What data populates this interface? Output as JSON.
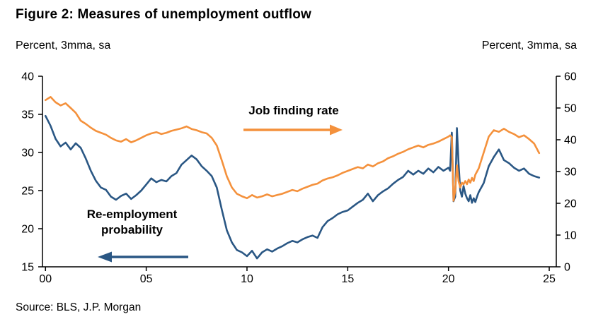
{
  "chart_data": {
    "type": "line",
    "title": "Figure 2: Measures of unemployment outflow",
    "source": "Source: BLS, J.P. Morgan",
    "grid": false,
    "left_axis": {
      "units_label": "Percent, 3mma, sa",
      "min": 15,
      "max": 40,
      "ticks": [
        15,
        20,
        25,
        30,
        35,
        40
      ]
    },
    "right_axis": {
      "units_label": "Percent, 3mma, sa",
      "min": 0,
      "max": 60,
      "ticks": [
        0,
        10,
        20,
        30,
        40,
        50,
        60
      ]
    },
    "x_axis": {
      "tick_labels": [
        "00",
        "05",
        "10",
        "15",
        "20",
        "25"
      ],
      "tick_values": [
        2000,
        2005,
        2010,
        2015,
        2020,
        2025
      ]
    },
    "annotations": [
      {
        "label": "Job finding rate",
        "series": "Job finding rate",
        "arrow": "right",
        "color": "#F4913C"
      },
      {
        "label_line1": "Re-employment",
        "label_line2": "probability",
        "series": "Re-employment probability",
        "arrow": "left",
        "color": "#2A5784"
      }
    ],
    "x": [
      2000.0,
      2000.25,
      2000.5,
      2000.75,
      2001.0,
      2001.25,
      2001.5,
      2001.75,
      2002.0,
      2002.25,
      2002.5,
      2002.75,
      2003.0,
      2003.25,
      2003.5,
      2003.75,
      2004.0,
      2004.25,
      2004.5,
      2004.75,
      2005.0,
      2005.25,
      2005.5,
      2005.75,
      2006.0,
      2006.25,
      2006.5,
      2006.75,
      2007.0,
      2007.25,
      2007.5,
      2007.75,
      2008.0,
      2008.25,
      2008.5,
      2008.75,
      2009.0,
      2009.25,
      2009.5,
      2009.75,
      2010.0,
      2010.25,
      2010.5,
      2010.75,
      2011.0,
      2011.25,
      2011.5,
      2011.75,
      2012.0,
      2012.25,
      2012.5,
      2012.75,
      2013.0,
      2013.25,
      2013.5,
      2013.75,
      2014.0,
      2014.25,
      2014.5,
      2014.75,
      2015.0,
      2015.25,
      2015.5,
      2015.75,
      2016.0,
      2016.25,
      2016.5,
      2016.75,
      2017.0,
      2017.25,
      2017.5,
      2017.75,
      2018.0,
      2018.25,
      2018.5,
      2018.75,
      2019.0,
      2019.25,
      2019.5,
      2019.75,
      2020.0,
      2020.083,
      2020.167,
      2020.25,
      2020.333,
      2020.417,
      2020.5,
      2020.583,
      2020.667,
      2020.75,
      2020.833,
      2020.917,
      2021.0,
      2021.083,
      2021.167,
      2021.25,
      2021.333,
      2021.417,
      2021.5,
      2021.75,
      2022.0,
      2022.25,
      2022.5,
      2022.75,
      2023.0,
      2023.25,
      2023.5,
      2023.75,
      2024.0,
      2024.25,
      2024.5
    ],
    "series": [
      {
        "name": "Re-employment probability",
        "axis": "left",
        "color": "#2A5784",
        "values": [
          34.8,
          33.5,
          31.8,
          30.8,
          31.3,
          30.4,
          31.2,
          30.6,
          29.2,
          27.6,
          26.3,
          25.4,
          25.1,
          24.2,
          23.8,
          24.3,
          24.6,
          23.9,
          24.4,
          25.0,
          25.8,
          26.6,
          26.1,
          26.4,
          26.2,
          26.9,
          27.3,
          28.4,
          29.0,
          29.6,
          29.1,
          28.2,
          27.6,
          26.9,
          25.4,
          22.5,
          19.8,
          18.2,
          17.2,
          16.9,
          16.4,
          17.1,
          16.1,
          16.9,
          17.3,
          17.0,
          17.4,
          17.7,
          18.1,
          18.4,
          18.2,
          18.6,
          18.9,
          19.1,
          18.8,
          20.2,
          21.0,
          21.4,
          21.9,
          22.2,
          22.4,
          22.9,
          23.4,
          23.8,
          24.6,
          23.6,
          24.4,
          24.9,
          25.3,
          25.9,
          26.4,
          26.8,
          27.6,
          27.1,
          27.6,
          27.2,
          27.9,
          27.4,
          28.1,
          27.6,
          28.0,
          27.6,
          32.6,
          23.6,
          24.2,
          33.2,
          28.6,
          25.0,
          24.2,
          25.6,
          24.6,
          24.0,
          23.6,
          24.4,
          23.4,
          24.0,
          23.5,
          24.2,
          24.8,
          26.0,
          28.2,
          29.4,
          30.4,
          29.0,
          28.6,
          28.0,
          27.6,
          27.9,
          27.2,
          26.9,
          26.7
        ]
      },
      {
        "name": "Job finding rate",
        "axis": "right",
        "color": "#F4913C",
        "values": [
          52.5,
          53.5,
          51.8,
          50.8,
          51.5,
          50.0,
          48.5,
          46.0,
          45.0,
          43.8,
          42.8,
          42.2,
          41.6,
          40.6,
          39.8,
          39.4,
          40.2,
          39.2,
          39.8,
          40.6,
          41.4,
          42.0,
          42.4,
          41.8,
          42.2,
          42.8,
          43.2,
          43.6,
          44.2,
          43.4,
          43.0,
          42.4,
          42.0,
          40.6,
          38.2,
          33.5,
          28.5,
          25.0,
          23.0,
          22.2,
          21.6,
          22.6,
          21.8,
          22.2,
          22.8,
          22.2,
          22.6,
          23.0,
          23.6,
          24.2,
          23.8,
          24.6,
          25.2,
          25.8,
          26.2,
          27.2,
          27.8,
          28.2,
          28.8,
          29.6,
          30.2,
          30.8,
          31.4,
          31.0,
          32.2,
          31.6,
          32.6,
          33.2,
          34.2,
          34.8,
          35.6,
          36.2,
          37.0,
          37.6,
          38.2,
          37.6,
          38.4,
          38.8,
          39.4,
          40.2,
          41.0,
          41.4,
          40.8,
          20.8,
          24.0,
          32.0,
          27.0,
          25.0,
          26.5,
          26.0,
          27.0,
          26.0,
          27.5,
          26.5,
          28.0,
          27.0,
          29.0,
          30.0,
          31.0,
          36.0,
          41.0,
          43.0,
          42.5,
          43.5,
          42.5,
          41.8,
          40.8,
          41.4,
          40.2,
          38.8,
          35.8
        ]
      }
    ]
  }
}
